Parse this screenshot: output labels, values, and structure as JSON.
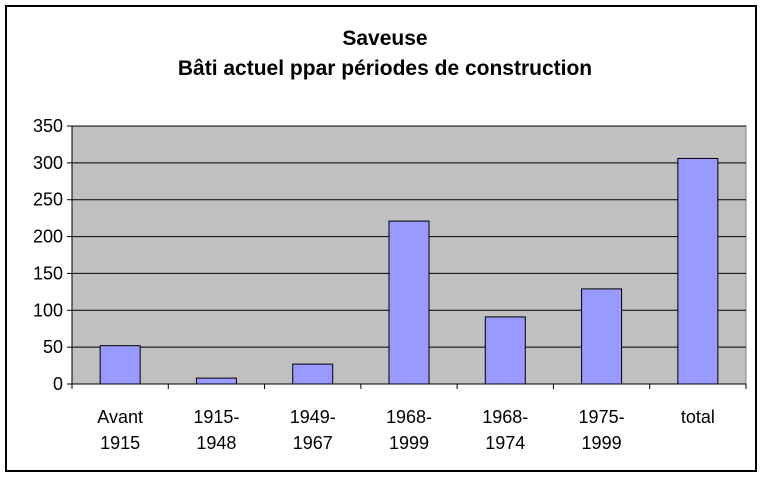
{
  "chart_data": {
    "type": "bar",
    "title": [
      "Saveuse",
      "Bâti actuel ppar périodes de construction"
    ],
    "categories": [
      [
        "Avant",
        "1915"
      ],
      [
        "1915-",
        "1948"
      ],
      [
        "1949-",
        "1967"
      ],
      [
        "1968-",
        "1999"
      ],
      [
        "1968-",
        "1974"
      ],
      [
        "1975-",
        "1999"
      ],
      [
        "total"
      ]
    ],
    "values": [
      52,
      8,
      27,
      221,
      91,
      129,
      306
    ],
    "ylim": [
      0,
      350
    ],
    "yticks": [
      0,
      50,
      100,
      150,
      200,
      250,
      300,
      350
    ],
    "xlabel": "",
    "ylabel": "",
    "grid": true,
    "legend": false,
    "colors": {
      "bar_fill": "#9999ff",
      "bar_stroke": "#000000",
      "plot_background": "#c0c0c0",
      "gridline": "#000000"
    }
  }
}
